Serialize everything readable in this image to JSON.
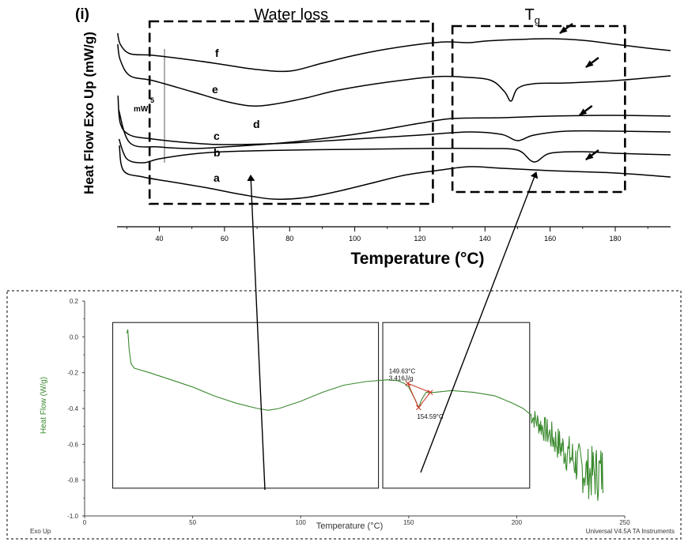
{
  "panel_label": "(i)",
  "chart_data": [
    {
      "type": "line",
      "title": "",
      "xlabel": "Temperature (°C)",
      "ylabel": "Heat Flow Exo Up (mW/g)",
      "xlim": [
        27,
        197
      ],
      "x_ticks": [
        40,
        60,
        80,
        100,
        120,
        140,
        160,
        180
      ],
      "y_ticks_shown": false,
      "grid": false,
      "scale_bar_label": "mW",
      "scale_bar_value": "5",
      "annotation_boxes": [
        {
          "label": "Water loss",
          "x_range": [
            37,
            124
          ]
        },
        {
          "label": "T",
          "label_subscript": "g",
          "x_range": [
            130,
            183
          ]
        }
      ],
      "tg_arrows": [
        {
          "series": "f",
          "x": 163
        },
        {
          "series": "e",
          "x": 171
        },
        {
          "series": "c",
          "x": 169
        },
        {
          "series": "a",
          "x": 171
        }
      ],
      "series": [
        {
          "name": "f",
          "points": [
            [
              27.2,
              36
            ],
            [
              28,
              50
            ],
            [
              31,
              62
            ],
            [
              38,
              64
            ],
            [
              50,
              70
            ],
            [
              60,
              76
            ],
            [
              70,
              82
            ],
            [
              80,
              84
            ],
            [
              90,
              74
            ],
            [
              100,
              64
            ],
            [
              110,
              56
            ],
            [
              120,
              50
            ],
            [
              128,
              47
            ],
            [
              135,
              48
            ],
            [
              140,
              46
            ],
            [
              150,
              44
            ],
            [
              160,
              43
            ],
            [
              170,
              45
            ],
            [
              180,
              50
            ],
            [
              190,
              55
            ],
            [
              197,
              58
            ]
          ]
        },
        {
          "name": "e",
          "points": [
            [
              27.2,
              50
            ],
            [
              28,
              70
            ],
            [
              31,
              90
            ],
            [
              38,
              96
            ],
            [
              50,
              110
            ],
            [
              60,
              122
            ],
            [
              68,
              128
            ],
            [
              75,
              126
            ],
            [
              85,
              118
            ],
            [
              95,
              108
            ],
            [
              110,
              98
            ],
            [
              125,
              91
            ],
            [
              135,
              92
            ],
            [
              142,
              96
            ],
            [
              146,
              110
            ],
            [
              148,
              122
            ],
            [
              150,
              106
            ],
            [
              155,
              100
            ],
            [
              165,
              99
            ],
            [
              180,
              96
            ],
            [
              197,
              90
            ]
          ]
        },
        {
          "name": "c",
          "points": [
            [
              27.3,
              115
            ],
            [
              28,
              150
            ],
            [
              31,
              165
            ],
            [
              38,
              170
            ],
            [
              50,
              175
            ],
            [
              60,
              177
            ],
            [
              80,
              175
            ],
            [
              100,
              170
            ],
            [
              120,
              165
            ],
            [
              135,
              161
            ],
            [
              145,
              164
            ],
            [
              150,
              172
            ],
            [
              155,
              165
            ],
            [
              165,
              160
            ],
            [
              180,
              160
            ],
            [
              197,
              161
            ]
          ]
        },
        {
          "name": "d",
          "points": [
            [
              27.5,
              133
            ],
            [
              31,
              175
            ],
            [
              40,
              180
            ],
            [
              50,
              182
            ],
            [
              60,
              180
            ],
            [
              80,
              174
            ],
            [
              100,
              164
            ],
            [
              120,
              150
            ],
            [
              130,
              144
            ],
            [
              145,
              143
            ],
            [
              160,
              141
            ],
            [
              180,
              140
            ],
            [
              197,
              141
            ]
          ]
        },
        {
          "name": "b",
          "points": [
            [
              27.6,
              170
            ],
            [
              30,
              195
            ],
            [
              35,
              200
            ],
            [
              40,
              195
            ],
            [
              50,
              189
            ],
            [
              60,
              186
            ],
            [
              80,
              184
            ],
            [
              100,
              183
            ],
            [
              120,
              182
            ],
            [
              140,
              182
            ],
            [
              150,
              184
            ],
            [
              155,
              199
            ],
            [
              160,
              188
            ],
            [
              170,
              186
            ],
            [
              180,
              188
            ],
            [
              197,
              190
            ]
          ]
        },
        {
          "name": "a",
          "points": [
            [
              27.7,
              178
            ],
            [
              29,
              210
            ],
            [
              35,
              218
            ],
            [
              45,
              225
            ],
            [
              55,
              232
            ],
            [
              65,
              240
            ],
            [
              75,
              246
            ],
            [
              85,
              244
            ],
            [
              95,
              236
            ],
            [
              105,
              226
            ],
            [
              115,
              216
            ],
            [
              125,
              210
            ],
            [
              135,
              205
            ],
            [
              145,
              207
            ],
            [
              160,
              210
            ],
            [
              180,
              213
            ],
            [
              197,
              218
            ]
          ]
        }
      ]
    },
    {
      "type": "line",
      "title": "",
      "xlabel": "Temperature (°C)",
      "ylabel": "Heat Flow (W/g)",
      "xlim": [
        0,
        250
      ],
      "ylim": [
        -1.0,
        0.2
      ],
      "x_ticks": [
        0,
        50,
        100,
        150,
        200,
        250
      ],
      "y_ticks": [
        0.2,
        0.0,
        -0.2,
        -0.4,
        -0.6,
        -0.8,
        -1.0
      ],
      "y_tick_labels": [
        "0.2",
        "0.0",
        "-0.2",
        "-0.4",
        "-0.6",
        "-0.8",
        "-1.0"
      ],
      "grid": false,
      "line_color": "#3a8a2e",
      "annotation_color": "#cc3322",
      "footer_left": "Exo Up",
      "footer_right": "Universal V4.5A TA Instruments",
      "boxes": [
        {
          "x_range": [
            13,
            136
          ],
          "y_range": [
            -0.845,
            0.08
          ]
        },
        {
          "x_range": [
            138,
            206
          ],
          "y_range": [
            -0.845,
            0.08
          ]
        }
      ],
      "annotations": {
        "onset_temp": "149.63°C",
        "enthalpy": "3.416J/g",
        "peak_temp": "154.59°C",
        "onset_point": [
          149.63,
          -0.26
        ],
        "peak_point": [
          154.59,
          -0.395
        ],
        "end_point": [
          160,
          -0.31
        ]
      },
      "series": [
        {
          "points": [
            [
              19.5,
              0.02
            ],
            [
              20,
              0.04
            ],
            [
              20.6,
              -0.07
            ],
            [
              21.5,
              -0.15
            ],
            [
              23,
              -0.175
            ],
            [
              30,
              -0.2
            ],
            [
              40,
              -0.24
            ],
            [
              50,
              -0.28
            ],
            [
              60,
              -0.33
            ],
            [
              70,
              -0.37
            ],
            [
              80,
              -0.4
            ],
            [
              85,
              -0.41
            ],
            [
              90,
              -0.4
            ],
            [
              100,
              -0.36
            ],
            [
              110,
              -0.31
            ],
            [
              120,
              -0.27
            ],
            [
              130,
              -0.25
            ],
            [
              140,
              -0.24
            ],
            [
              145,
              -0.245
            ],
            [
              148,
              -0.26
            ],
            [
              150,
              -0.28
            ],
            [
              153,
              -0.35
            ],
            [
              154.6,
              -0.395
            ],
            [
              156,
              -0.35
            ],
            [
              158,
              -0.31
            ],
            [
              162,
              -0.31
            ],
            [
              170,
              -0.3
            ],
            [
              180,
              -0.31
            ],
            [
              190,
              -0.33
            ],
            [
              198,
              -0.37
            ],
            [
              203,
              -0.4
            ],
            [
              206,
              -0.43
            ]
          ],
          "noise_x_range": [
            206,
            240
          ]
        }
      ]
    }
  ],
  "connector_arrows": [
    {
      "from_region": "bottom Water loss box",
      "to_region": "top Water loss box"
    },
    {
      "from_region": "bottom Tg box",
      "to_region": "top Tg box"
    }
  ]
}
